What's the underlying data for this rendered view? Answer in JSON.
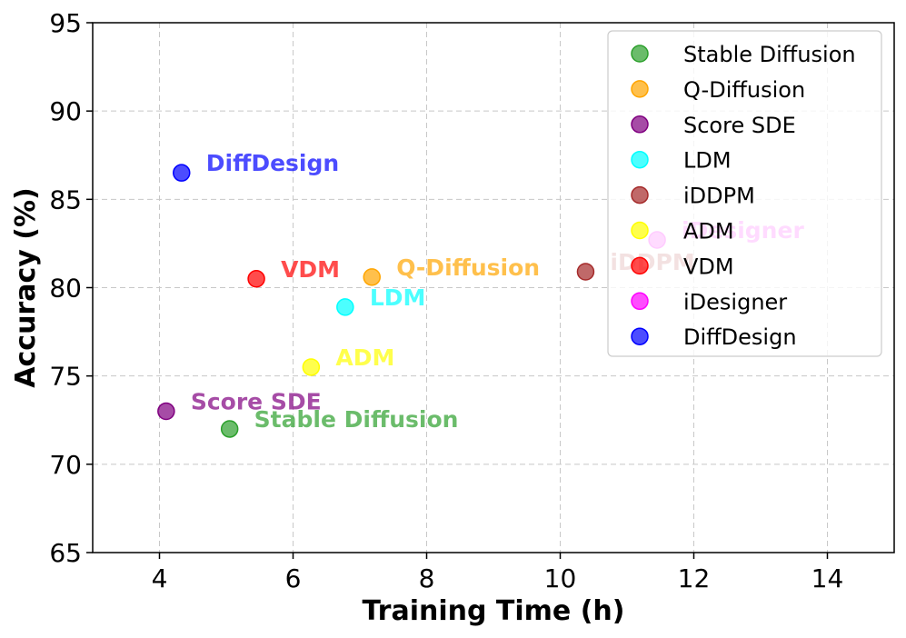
{
  "chart_data": {
    "type": "scatter",
    "xlabel": "Training Time (h)",
    "ylabel": "Accuracy (%)",
    "xlim": [
      3,
      15
    ],
    "ylim": [
      65,
      95
    ],
    "xticks": [
      4,
      6,
      8,
      10,
      12,
      14
    ],
    "yticks": [
      65,
      70,
      75,
      80,
      85,
      90,
      95
    ],
    "grid": true,
    "legend_position": "top-right",
    "series": [
      {
        "name": "Stable Diffusion",
        "label": "Stable Diffusion",
        "x": 5.05,
        "y": 72.0,
        "color": "#2ca02c"
      },
      {
        "name": "Q-Diffusion",
        "label": "Q-Diffusion",
        "x": 7.18,
        "y": 80.6,
        "color": "#ffa500"
      },
      {
        "name": "Score SDE",
        "label": "Score SDE",
        "x": 4.1,
        "y": 73.0,
        "color": "#800080"
      },
      {
        "name": "LDM",
        "label": "LDM",
        "x": 6.78,
        "y": 78.9,
        "color": "#00ffff"
      },
      {
        "name": "iDDPM",
        "label": "iDDPM",
        "x": 10.38,
        "y": 80.9,
        "color": "#a52a2a"
      },
      {
        "name": "ADM",
        "label": "ADM",
        "x": 6.27,
        "y": 75.5,
        "color": "#ffff00"
      },
      {
        "name": "VDM",
        "label": "VDM",
        "x": 5.45,
        "y": 80.5,
        "color": "#ff0000"
      },
      {
        "name": "iDesigner",
        "label": "iDesigner",
        "x": 11.45,
        "y": 82.7,
        "color": "#ff00ff"
      },
      {
        "name": "DiffDesign",
        "label": "DiffDesign",
        "x": 4.33,
        "y": 86.5,
        "color": "#0000ff"
      }
    ]
  }
}
